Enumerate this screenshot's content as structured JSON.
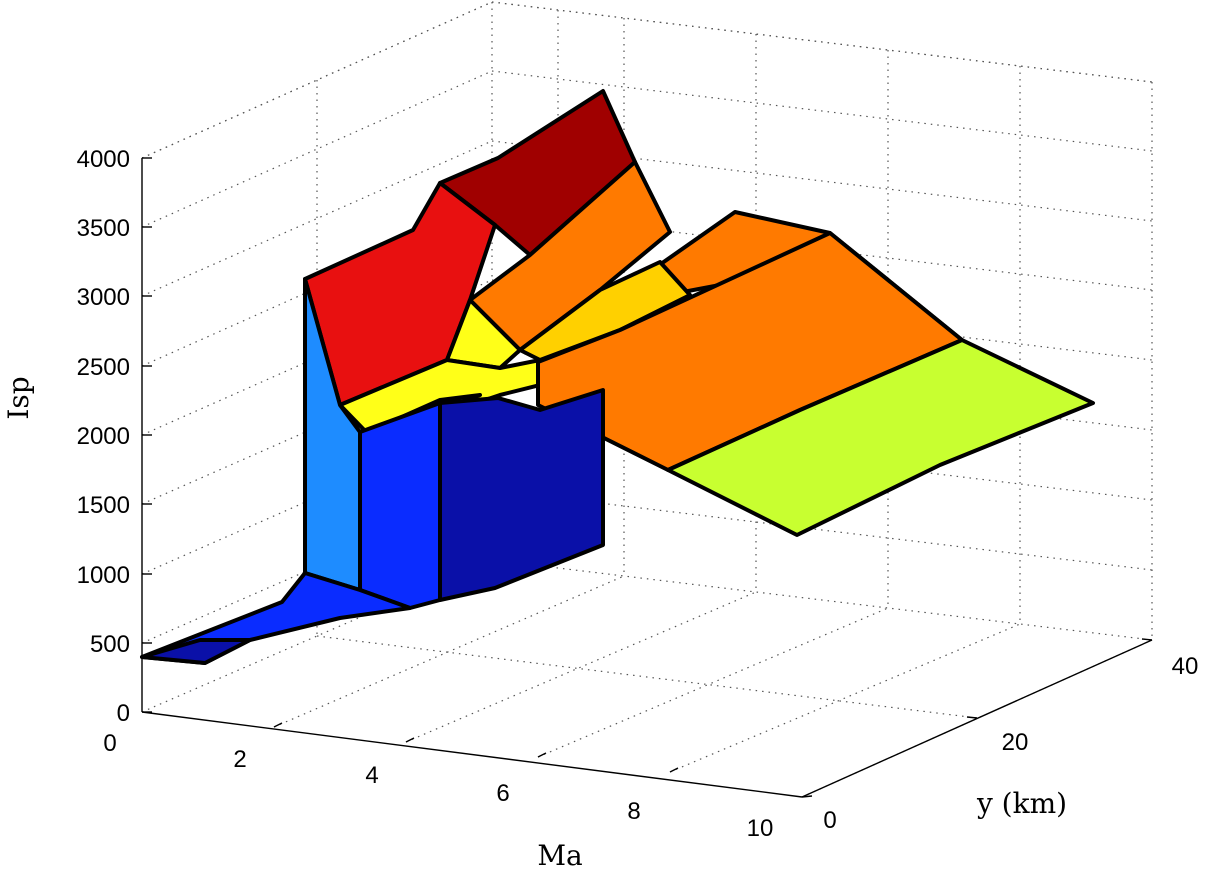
{
  "chart_data": {
    "type": "surface3d",
    "xlabel": "Ma",
    "ylabel": "y (km)",
    "zlabel": "Isp",
    "xlim": [
      0,
      10
    ],
    "ylim": [
      0,
      40
    ],
    "zlim": [
      0,
      4000
    ],
    "x_ticks": [
      "0",
      "2",
      "4",
      "6",
      "8",
      "10"
    ],
    "y_ticks": [
      "0",
      "20",
      "40"
    ],
    "z_ticks": [
      "0",
      "500",
      "1000",
      "1500",
      "2000",
      "2500",
      "3000",
      "3500",
      "4000"
    ],
    "grid": true,
    "colormap": "jet",
    "regions": [
      {
        "Ma": [
          0.0,
          2.5
        ],
        "y_km": [
          0,
          15
        ],
        "Isp": 450
      },
      {
        "Ma": [
          2.5,
          6.0
        ],
        "y_km": [
          0,
          15
        ],
        "Isp": 900
      },
      {
        "Ma": [
          2.5,
          6.0
        ],
        "y_km": [
          15,
          25
        ],
        "Isp": 3100
      },
      {
        "Ma": [
          3.0,
          6.0
        ],
        "y_km": [
          25,
          40
        ],
        "Isp": 4000
      },
      {
        "Ma": [
          2.5,
          6.0
        ],
        "y_km": [
          10,
          18
        ],
        "Isp": 2200
      },
      {
        "Ma": [
          6.0,
          10.0
        ],
        "y_km": [
          5,
          40
        ],
        "Isp": 2900
      },
      {
        "Ma": [
          6.0,
          10.0
        ],
        "y_km": [
          0,
          10
        ],
        "Isp": 1900
      }
    ]
  },
  "colors": {
    "background": "#ffffff",
    "edge": "#000000",
    "low": "#0a10a8",
    "mid_low": "#0a2cff",
    "mid": "#1e8cff",
    "yellow_green": "#c8ff30",
    "yellow": "#ffff18",
    "orange": "#ff7a00",
    "red": "#e81010",
    "dark_red": "#a00000"
  }
}
